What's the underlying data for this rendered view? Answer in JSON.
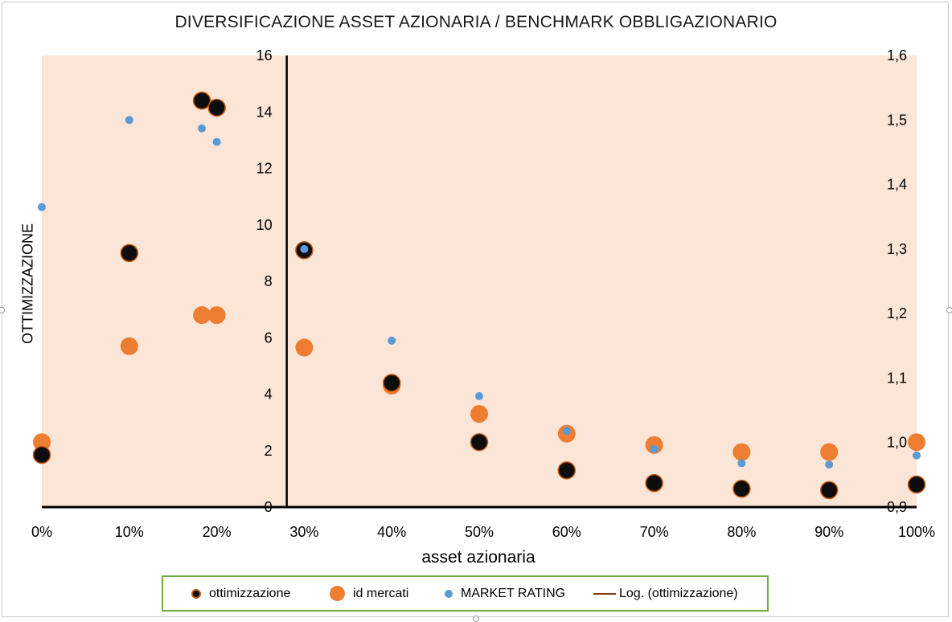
{
  "chart_data": {
    "type": "scatter",
    "title": "DIVERSIFICAZIONE ASSET AZIONARIA  / BENCHMARK OBBLIGAZIONARIO",
    "xlabel": "asset azionaria",
    "ylabel": "OTTIMIZZAZIONE",
    "xlim": [
      0,
      1
    ],
    "ylim": [
      0,
      16
    ],
    "y2lim": [
      0.9,
      1.6
    ],
    "x_ticks": [
      "0%",
      "10%",
      "20%",
      "30%",
      "40%",
      "50%",
      "60%",
      "70%",
      "80%",
      "90%",
      "100%"
    ],
    "y_ticks": [
      "0",
      "2",
      "4",
      "6",
      "8",
      "10",
      "12",
      "14",
      "16"
    ],
    "y2_ticks": [
      "0,9",
      "1,0",
      "1,1",
      "1,2",
      "1,3",
      "1,4",
      "1,5",
      "1,6"
    ],
    "plot_background": "#fbe5d6",
    "series": [
      {
        "name": "ottimizzazione",
        "axis": "left",
        "color": "#0d0d0d",
        "edge_color": "#c55a11",
        "x": [
          0,
          0.1,
          0.183,
          0.2,
          0.3,
          0.4,
          0.5,
          0.6,
          0.7,
          0.8,
          0.9,
          1.0
        ],
        "y": [
          1.85,
          9.0,
          14.4,
          14.15,
          9.1,
          4.4,
          2.3,
          1.3,
          0.85,
          0.65,
          0.6,
          0.8
        ]
      },
      {
        "name": "id mercati",
        "axis": "left",
        "color": "#ed7d31",
        "x": [
          0,
          0.1,
          0.183,
          0.2,
          0.3,
          0.4,
          0.5,
          0.6,
          0.7,
          0.8,
          0.9,
          1.0
        ],
        "y": [
          2.3,
          5.7,
          6.8,
          6.8,
          5.65,
          4.3,
          3.3,
          2.6,
          2.2,
          1.95,
          1.95,
          2.3
        ]
      },
      {
        "name": "MARKET RATING",
        "axis": "right",
        "color": "#5b9bd5",
        "x": [
          0,
          0.1,
          0.183,
          0.2,
          0.3,
          0.4,
          0.5,
          0.6,
          0.7,
          0.8,
          0.9,
          1.0
        ],
        "y": [
          1.365,
          1.5,
          1.487,
          1.466,
          1.3,
          1.158,
          1.072,
          1.018,
          0.99,
          0.968,
          0.966,
          0.98
        ]
      }
    ],
    "trendline": {
      "name": "Log. (ottimizzazione)",
      "type": "logarithmic",
      "color": "#843c0c"
    },
    "grid": false,
    "legend_position": "bottom"
  }
}
